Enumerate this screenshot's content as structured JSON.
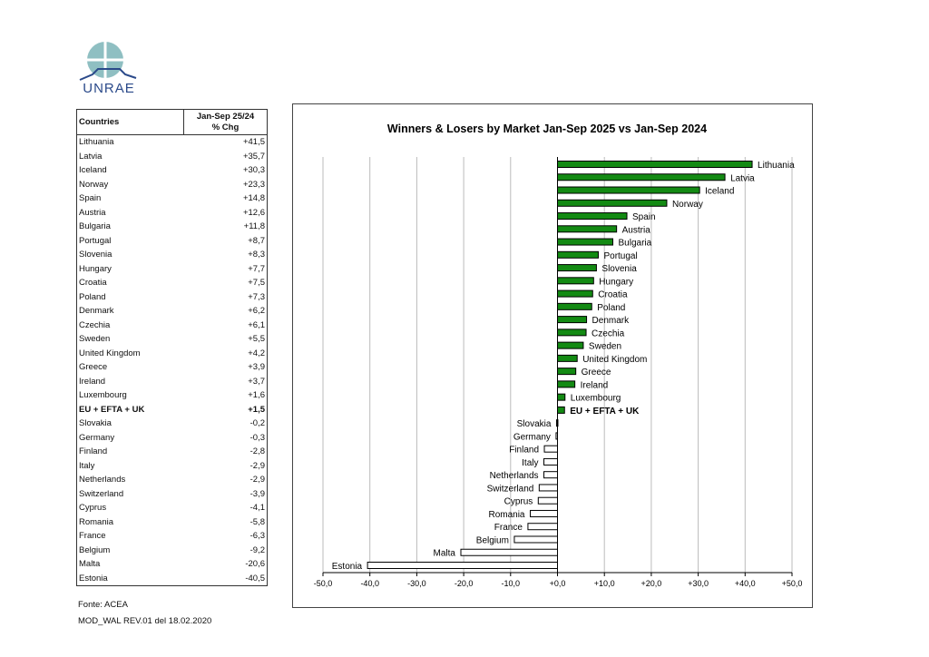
{
  "logo": {
    "text": "UNRAE"
  },
  "table": {
    "header_country": "Countries",
    "header_value_line1": "Jan-Sep 25/24",
    "header_value_line2": "% Chg"
  },
  "footer": {
    "source": "Fonte: ACEA",
    "doc_ref": "MOD_WAL REV.01 del 18.02.2020"
  },
  "chart_data": {
    "type": "bar",
    "orientation": "horizontal",
    "title": "Winners & Losers by Market  Jan-Sep 2025 vs Jan-Sep 2024",
    "xlim": [
      -50,
      50
    ],
    "xticks": [
      "-50,0",
      "-40,0",
      "-30,0",
      "-20,0",
      "-10,0",
      "+0,0",
      "+10,0",
      "+20,0",
      "+30,0",
      "+40,0",
      "+50,0"
    ],
    "grid": true,
    "positive_color": "#138a13",
    "negative_color": "#ffffff",
    "highlight": "EU + EFTA + UK",
    "categories": [
      "Lithuania",
      "Latvia",
      "Iceland",
      "Norway",
      "Spain",
      "Austria",
      "Bulgaria",
      "Portugal",
      "Slovenia",
      "Hungary",
      "Croatia",
      "Poland",
      "Denmark",
      "Czechia",
      "Sweden",
      "United Kingdom",
      "Greece",
      "Ireland",
      "Luxembourg",
      "EU + EFTA + UK",
      "Slovakia",
      "Germany",
      "Finland",
      "Italy",
      "Netherlands",
      "Switzerland",
      "Cyprus",
      "Romania",
      "France",
      "Belgium",
      "Malta",
      "Estonia"
    ],
    "values": [
      41.5,
      35.7,
      30.3,
      23.3,
      14.8,
      12.6,
      11.8,
      8.7,
      8.3,
      7.7,
      7.5,
      7.3,
      6.2,
      6.1,
      5.5,
      4.2,
      3.9,
      3.7,
      1.6,
      1.5,
      -0.2,
      -0.3,
      -2.8,
      -2.9,
      -2.9,
      -3.9,
      -4.1,
      -5.8,
      -6.3,
      -9.2,
      -20.6,
      -40.5
    ],
    "value_labels": [
      "+41,5",
      "+35,7",
      "+30,3",
      "+23,3",
      "+14,8",
      "+12,6",
      "+11,8",
      "+8,7",
      "+8,3",
      "+7,7",
      "+7,5",
      "+7,3",
      "+6,2",
      "+6,1",
      "+5,5",
      "+4,2",
      "+3,9",
      "+3,7",
      "+1,6",
      "+1,5",
      "-0,2",
      "-0,3",
      "-2,8",
      "-2,9",
      "-2,9",
      "-3,9",
      "-4,1",
      "-5,8",
      "-6,3",
      "-9,2",
      "-20,6",
      "-40,5"
    ]
  }
}
